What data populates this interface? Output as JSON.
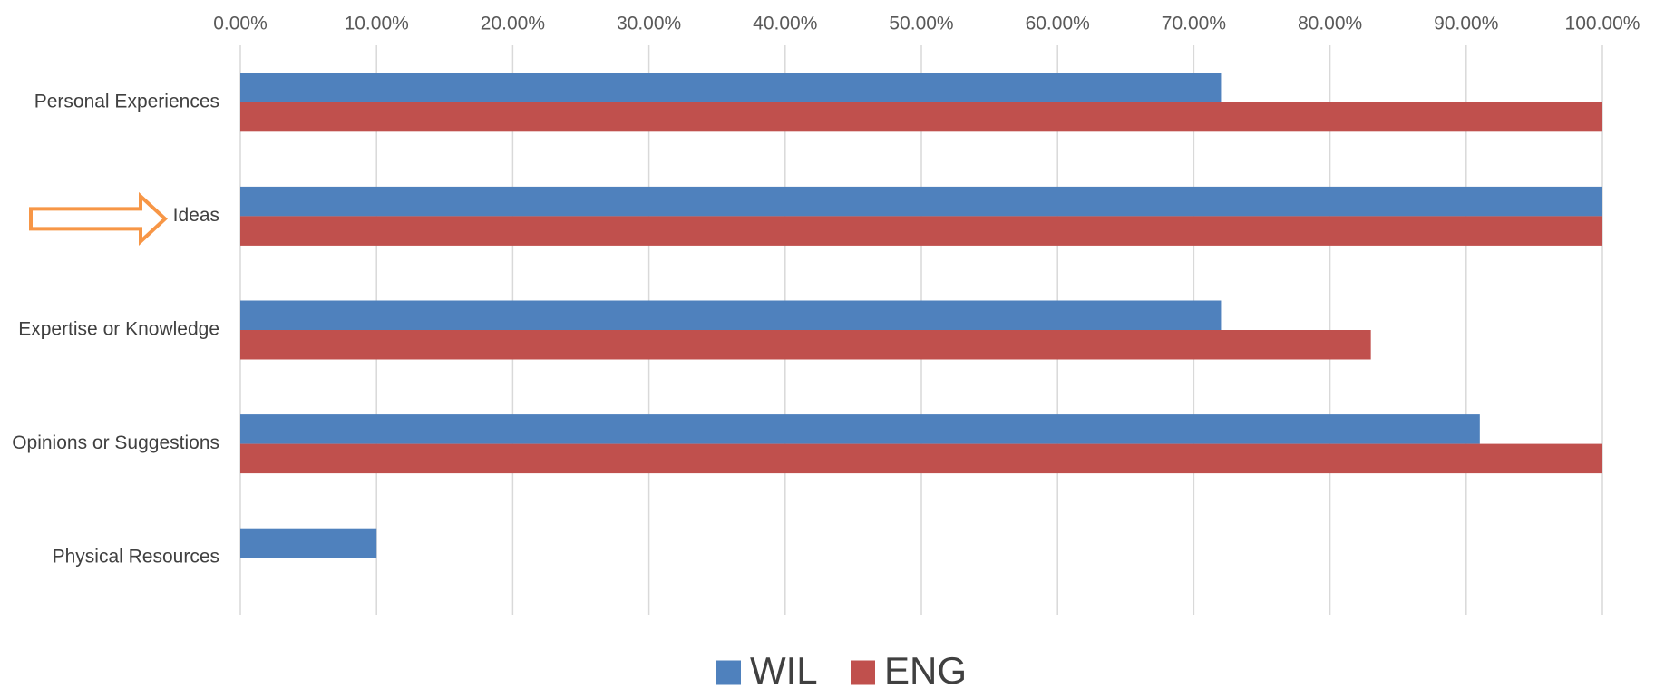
{
  "chart_data": {
    "type": "bar",
    "orientation": "horizontal",
    "categories": [
      "Personal Experiences",
      "Ideas",
      "Expertise or Knowledge",
      "Opinions or Suggestions",
      "Physical Resources"
    ],
    "series": [
      {
        "name": "WIL",
        "color": "#4f81bd",
        "values": [
          72,
          100,
          72,
          91,
          10
        ]
      },
      {
        "name": "ENG",
        "color": "#c0504d",
        "values": [
          100,
          100,
          83,
          100,
          0
        ]
      }
    ],
    "x_ticks": [
      "0.00%",
      "10.00%",
      "20.00%",
      "30.00%",
      "40.00%",
      "50.00%",
      "60.00%",
      "70.00%",
      "80.00%",
      "90.00%",
      "100.00%"
    ],
    "xlim": [
      0,
      100
    ],
    "x_axis_position": "top",
    "grid": true,
    "legend": "bottom",
    "title": "",
    "xlabel": "",
    "ylabel": "",
    "annotations": [
      {
        "type": "arrow",
        "icon": "hollow-right-arrow-icon",
        "target_category": "Ideas",
        "color": "#f79646"
      }
    ]
  }
}
